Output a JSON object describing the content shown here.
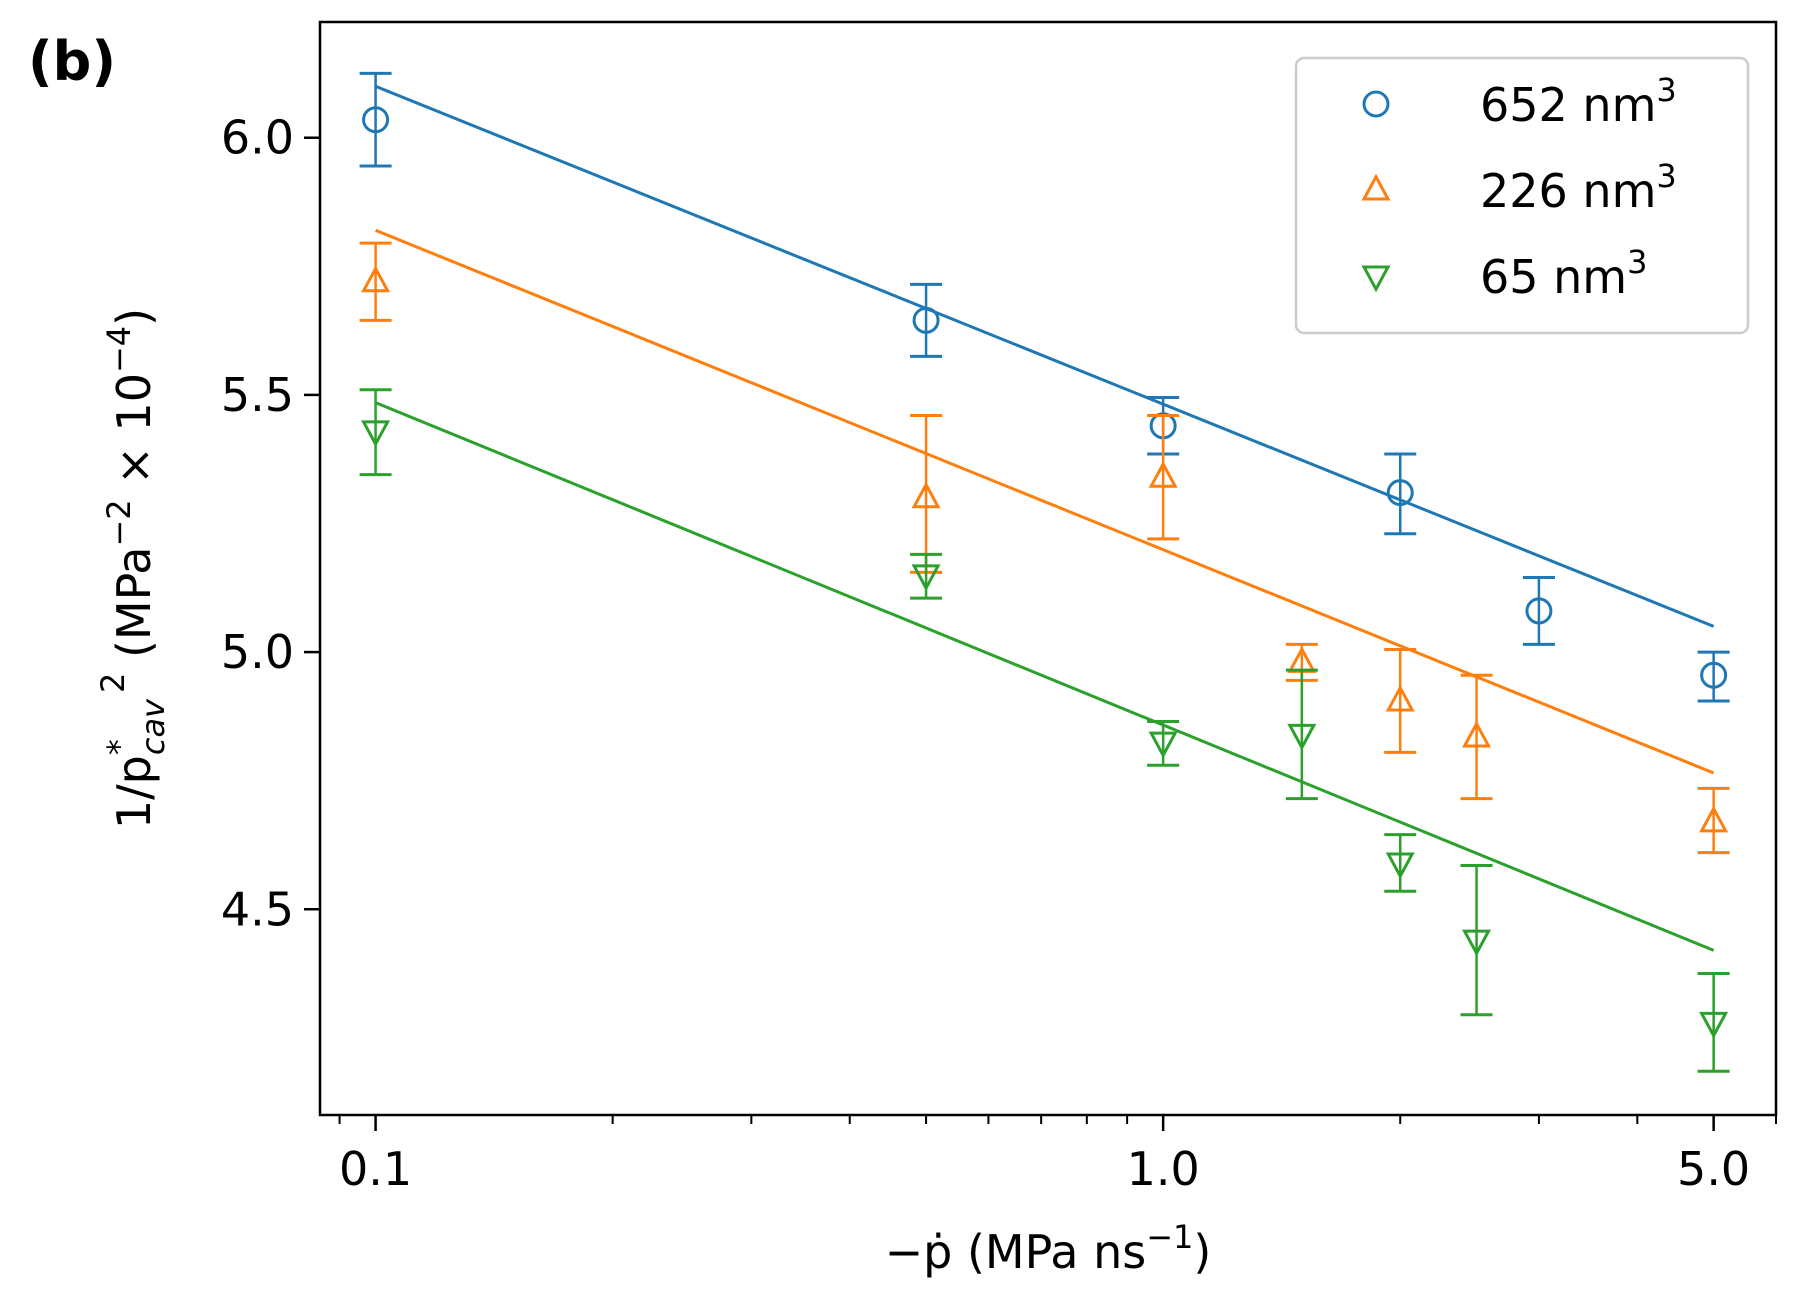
{
  "panel_label": "(b)",
  "chart_data": {
    "type": "scatter",
    "x_scale": "log",
    "xlim": [
      0.085,
      6.0
    ],
    "ylim": [
      4.1,
      6.225
    ],
    "xticks": [
      {
        "value": 0.1,
        "label": "0.1"
      },
      {
        "value": 1.0,
        "label": "1.0"
      },
      {
        "value": 5.0,
        "label": "5.0"
      }
    ],
    "yticks": [
      {
        "value": 4.5,
        "label": "4.5"
      },
      {
        "value": 5.0,
        "label": "5.0"
      },
      {
        "value": 5.5,
        "label": "5.5"
      },
      {
        "value": 6.0,
        "label": "6.0"
      }
    ],
    "xlabel": {
      "main": "−ṗ  (MPa ns",
      "sup": "−1",
      "close": ")"
    },
    "ylabel": {
      "main": "1/p",
      "star": "*",
      "sub": "cav",
      "sq": "2",
      "units": " (MPa",
      "exp": "−2",
      "times": " × 10",
      "exp2": "−4",
      "close": ")"
    },
    "legend": {
      "position": "top-right"
    },
    "series": [
      {
        "name": "652 nm",
        "sup": "3",
        "color": "#1f77b4",
        "marker": "circle",
        "points": [
          {
            "x": 0.1,
            "y": 6.035,
            "err_lo": 5.945,
            "err_hi": 6.125
          },
          {
            "x": 0.5,
            "y": 5.645,
            "err_lo": 5.575,
            "err_hi": 5.715
          },
          {
            "x": 1.0,
            "y": 5.44,
            "err_lo": 5.385,
            "err_hi": 5.495
          },
          {
            "x": 2.0,
            "y": 5.31,
            "err_lo": 5.23,
            "err_hi": 5.385
          },
          {
            "x": 3.0,
            "y": 5.08,
            "err_lo": 5.015,
            "err_hi": 5.145
          },
          {
            "x": 5.0,
            "y": 4.955,
            "err_lo": 4.905,
            "err_hi": 5.0
          }
        ],
        "fit": [
          {
            "x": 0.1,
            "y": 6.1
          },
          {
            "x": 5.0,
            "y": 5.05
          }
        ]
      },
      {
        "name": "226 nm",
        "sup": "3",
        "color": "#ff7f0e",
        "marker": "triangle-up",
        "points": [
          {
            "x": 0.1,
            "y": 5.72,
            "err_lo": 5.645,
            "err_hi": 5.795
          },
          {
            "x": 0.5,
            "y": 5.3,
            "err_lo": 5.155,
            "err_hi": 5.46
          },
          {
            "x": 1.0,
            "y": 5.34,
            "err_lo": 5.22,
            "err_hi": 5.46
          },
          {
            "x": 1.5,
            "y": 4.98,
            "err_lo": 4.945,
            "err_hi": 5.015
          },
          {
            "x": 2.0,
            "y": 4.905,
            "err_lo": 4.805,
            "err_hi": 5.005
          },
          {
            "x": 2.5,
            "y": 4.835,
            "err_lo": 4.715,
            "err_hi": 4.955
          },
          {
            "x": 5.0,
            "y": 4.67,
            "err_lo": 4.61,
            "err_hi": 4.735
          }
        ],
        "fit": [
          {
            "x": 0.1,
            "y": 5.82
          },
          {
            "x": 5.0,
            "y": 4.765
          }
        ]
      },
      {
        "name": "65 nm",
        "sup": "3",
        "color": "#2ca02c",
        "marker": "triangle-down",
        "points": [
          {
            "x": 0.1,
            "y": 5.43,
            "err_lo": 5.345,
            "err_hi": 5.51
          },
          {
            "x": 0.5,
            "y": 5.15,
            "err_lo": 5.105,
            "err_hi": 5.19
          },
          {
            "x": 1.0,
            "y": 4.825,
            "err_lo": 4.78,
            "err_hi": 4.865
          },
          {
            "x": 1.5,
            "y": 4.84,
            "err_lo": 4.715,
            "err_hi": 4.965
          },
          {
            "x": 2.0,
            "y": 4.59,
            "err_lo": 4.535,
            "err_hi": 4.645
          },
          {
            "x": 2.5,
            "y": 4.44,
            "err_lo": 4.295,
            "err_hi": 4.585
          },
          {
            "x": 5.0,
            "y": 4.28,
            "err_lo": 4.185,
            "err_hi": 4.375
          }
        ],
        "fit": [
          {
            "x": 0.1,
            "y": 5.485
          },
          {
            "x": 5.0,
            "y": 4.42
          }
        ]
      }
    ]
  }
}
